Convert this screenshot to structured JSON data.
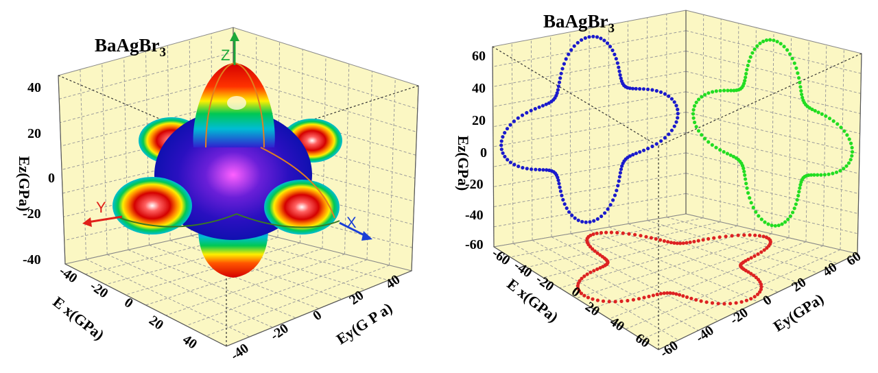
{
  "chart_data": [
    {
      "type": "surface3d",
      "title": "BaAgBr",
      "title_sub": "3",
      "xlabel": "E x(GPa)",
      "ylabel": "Ey(G P a)",
      "zlabel": "Ez(GPa)",
      "x_ticks": [
        "-40",
        "-20",
        "0",
        "20",
        "40"
      ],
      "y_ticks": [
        "-40",
        "-20",
        "0",
        "20",
        "40"
      ],
      "z_ticks": [
        "40",
        "20",
        "0",
        "-20",
        "-40"
      ],
      "xlim": [
        -40,
        40
      ],
      "ylim": [
        -40,
        40
      ],
      "zlim": [
        -40,
        40
      ],
      "axis_arrows": [
        {
          "name": "X",
          "color": "#1a3fd6"
        },
        {
          "name": "Y",
          "color": "#e0201a"
        },
        {
          "name": "Z",
          "color": "#1ea83a"
        }
      ],
      "colormap": [
        "#1e10c8",
        "#8a2be2",
        "#00bcd4",
        "#00c853",
        "#ffee00",
        "#ff7f00",
        "#d40000"
      ],
      "surface": "3D Young's modulus surface with lobes along x, y, z axes (~55 GPa max)"
    },
    {
      "type": "projection3d",
      "title": "BaAgBr",
      "title_sub": "3",
      "xlabel": "E x(GPa)",
      "ylabel": "Ey(GPa)",
      "zlabel": "Ez(GPa)",
      "x_ticks": [
        "-60",
        "-40",
        "-20",
        "0",
        "20",
        "40",
        "60"
      ],
      "y_ticks": [
        "-60",
        "-40",
        "-20",
        "0",
        "20",
        "40",
        "60"
      ],
      "z_ticks": [
        "60",
        "40",
        "20",
        "0",
        "-20",
        "-40",
        "-60"
      ],
      "xlim": [
        -60,
        60
      ],
      "ylim": [
        -60,
        60
      ],
      "zlim": [
        -60,
        60
      ],
      "series": [
        {
          "plane": "xz",
          "color": "#1a1acc",
          "max_radius": 55,
          "min_radius": 31,
          "lobes": 4
        },
        {
          "plane": "yz",
          "color": "#22dd22",
          "max_radius": 55,
          "min_radius": 31,
          "lobes": 4
        },
        {
          "plane": "xy",
          "color": "#dd2222",
          "max_radius": 55,
          "min_radius": 31,
          "lobes": 4
        }
      ]
    }
  ]
}
